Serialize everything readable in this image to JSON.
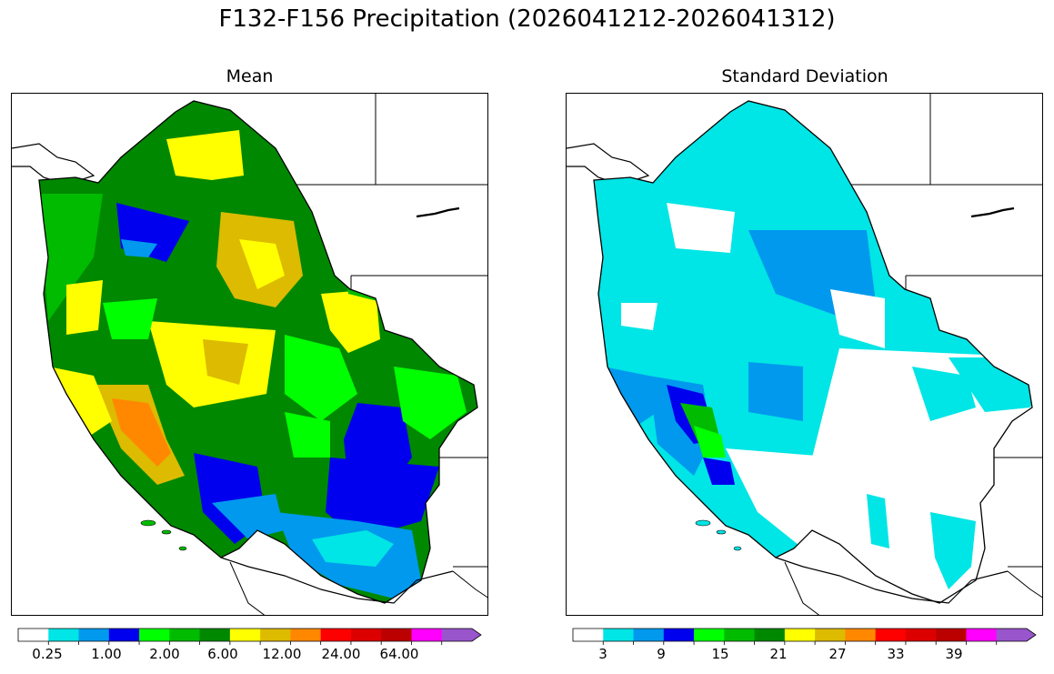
{
  "figure": {
    "title": "F132-F156 Precipitation (2026041212-2026041312)"
  },
  "panels": [
    {
      "title": "Mean",
      "colorbar": {
        "colors": [
          "#ffffff",
          "#00e5e5",
          "#0099ee",
          "#0000ee",
          "#00ff00",
          "#00bb00",
          "#008800",
          "#ffff00",
          "#ddbb00",
          "#ff8800",
          "#ff0000",
          "#dd0000",
          "#bb0000",
          "#ff00ff",
          "#9955cc"
        ],
        "tick_labels": [
          "0.25",
          "1.00",
          "2.00",
          "6.00",
          "12.00",
          "24.00",
          "64.00"
        ],
        "extend": "max"
      }
    },
    {
      "title": "Standard Deviation",
      "colorbar": {
        "colors": [
          "#ffffff",
          "#00e5e5",
          "#0099ee",
          "#0000ee",
          "#00ff00",
          "#00bb00",
          "#008800",
          "#ffff00",
          "#ddbb00",
          "#ff8800",
          "#ff0000",
          "#dd0000",
          "#bb0000",
          "#ff00ff",
          "#9955cc"
        ],
        "tick_labels": [
          "3",
          "9",
          "15",
          "21",
          "27",
          "33",
          "39"
        ],
        "extend": "max"
      }
    }
  ]
}
